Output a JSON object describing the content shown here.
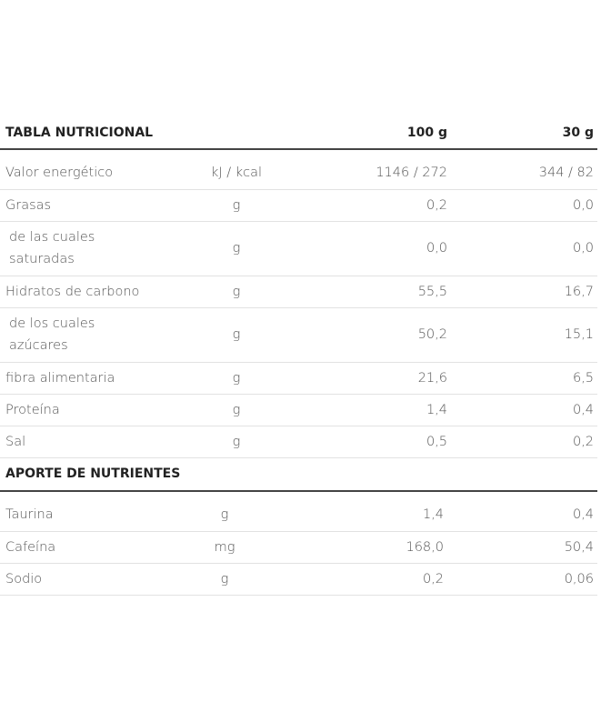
{
  "nutrition": {
    "header": [
      "TABLA NUTRICIONAL",
      "100 g",
      "30 g"
    ],
    "rows": [
      [
        "Valor energético",
        "kJ / kcal",
        "1146 / 272",
        "344 / 82"
      ],
      [
        "Grasas",
        "g",
        "0,2",
        "0,0"
      ],
      [
        "de las cuales\nsaturadas",
        "g",
        "0,0",
        "0,0"
      ],
      [
        "Hidratos de carbono",
        "g",
        "55,5",
        "16,7"
      ],
      [
        "de los cuales\nazúcares",
        "g",
        "50,2",
        "15,1"
      ],
      [
        "fibra alimentaria",
        "g",
        "21,6",
        "6,5"
      ],
      [
        "Proteína",
        "g",
        "1,4",
        "0,4"
      ],
      [
        "Sal",
        "g",
        "0,5",
        "0,2"
      ]
    ]
  },
  "nutrients": {
    "header": "APORTE DE NUTRIENTES",
    "rows": [
      [
        "Taurina",
        "g",
        "1,4",
        "0,4"
      ],
      [
        "Cafeína",
        "mg",
        "168,0",
        "50,4"
      ],
      [
        "Sodio",
        "g",
        "0,2",
        "0,06"
      ]
    ]
  }
}
